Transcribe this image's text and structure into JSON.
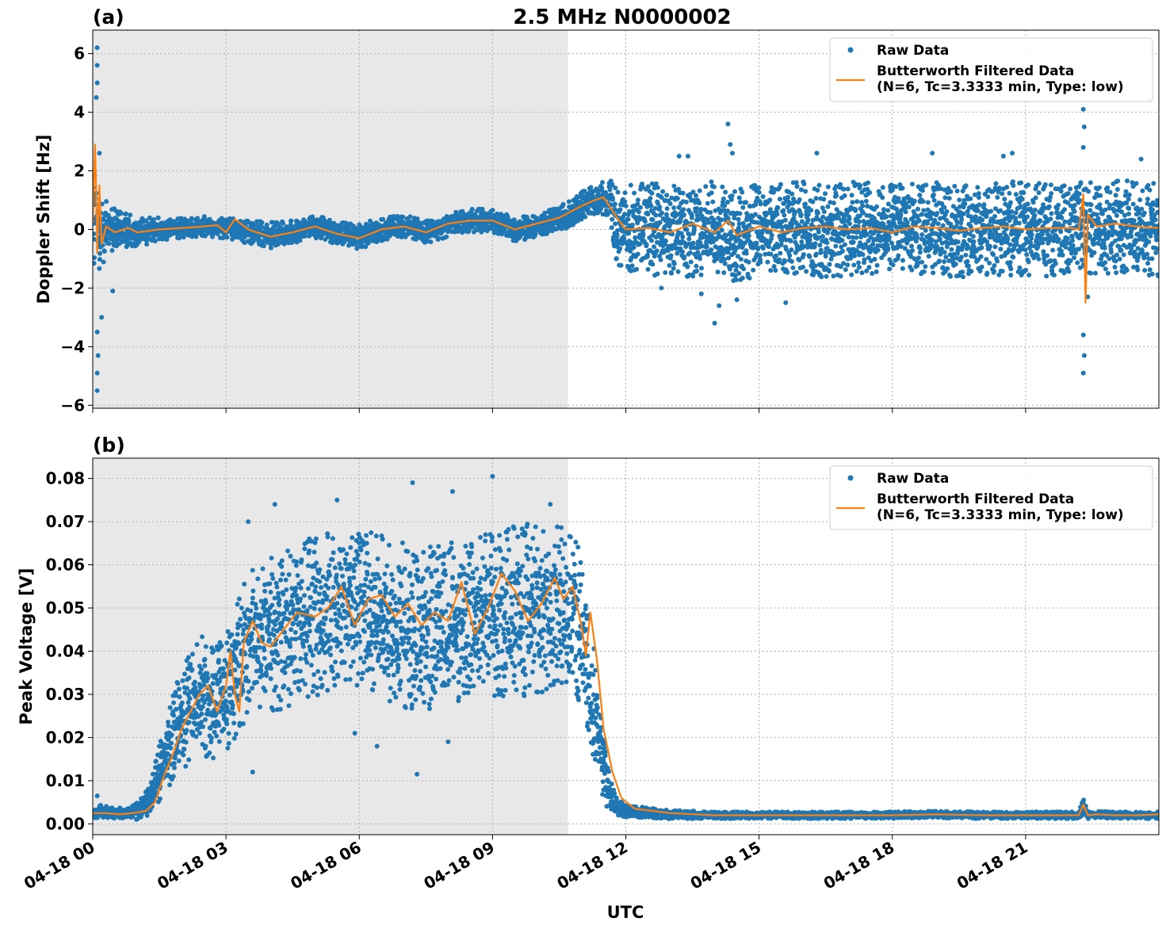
{
  "figure": {
    "title": "2.5 MHz N0000002",
    "xlabel": "UTC",
    "colors": {
      "raw": "#1f77b4",
      "filtered": "#ff7f0e",
      "shade": "#e8e8e8",
      "grid": "#b0b0b0"
    }
  },
  "chart_data": [
    {
      "type": "scatter",
      "panel_label": "(a)",
      "ylabel": "Doppler Shift [Hz]",
      "xlim": [
        0,
        24
      ],
      "ylim": [
        -6.1,
        6.8
      ],
      "yticks": [
        -6,
        -4,
        -2,
        0,
        2,
        4,
        6
      ],
      "ytick_labels": [
        "−6",
        "−4",
        "−2",
        "0",
        "2",
        "4",
        "6"
      ],
      "xticks": [
        0,
        3,
        6,
        9,
        12,
        15,
        18,
        21
      ],
      "xtick_labels": [],
      "grid": true,
      "shaded_x_range": [
        0,
        10.7
      ],
      "legend": {
        "placement": "top-right",
        "entries": [
          {
            "label": "Raw Data",
            "kind": "marker"
          },
          {
            "label": "Butterworth Filtered Data",
            "label2": "(N=6, Tc=3.3333 min, Type: low)",
            "kind": "line"
          }
        ]
      },
      "series": [
        {
          "name": "Raw Data",
          "style": "points",
          "x": [
            0,
            0.05,
            0.1,
            0.2,
            0.35,
            0.5,
            0.7,
            1.0,
            1.5,
            2,
            2.5,
            3,
            3.5,
            4,
            4.5,
            5,
            5.5,
            6,
            6.5,
            7,
            7.5,
            8,
            8.5,
            9,
            9.5,
            10,
            10.5,
            10.7,
            11,
            11.3,
            11.6,
            11.8,
            12,
            12.5,
            13,
            13.5,
            14,
            14.5,
            15,
            15.5,
            16,
            16.5,
            17,
            17.5,
            18,
            18.5,
            19,
            19.5,
            20,
            20.5,
            21,
            21.5,
            22,
            22.3,
            22.6,
            23,
            23.5,
            24
          ],
          "center": [
            0,
            0.2,
            0,
            -0.1,
            0,
            -0.1,
            0,
            -0.1,
            0,
            0.05,
            0.1,
            0.05,
            -0.1,
            -0.2,
            -0.1,
            0.1,
            -0.1,
            -0.25,
            0,
            0.1,
            -0.1,
            0.15,
            0.3,
            0.3,
            0,
            0.1,
            0.4,
            0.5,
            0.8,
            1.0,
            1.1,
            0.2,
            0,
            0,
            -0.1,
            0,
            0.05,
            -0.2,
            0,
            0,
            0.05,
            -0.1,
            0.05,
            0,
            0,
            0.05,
            0,
            -0.05,
            0,
            0.05,
            0,
            0,
            0.05,
            0.1,
            0,
            0.1,
            0.05,
            0
          ],
          "spread": [
            2.2,
            2.2,
            1.4,
            1.2,
            1.0,
            0.8,
            0.6,
            0.5,
            0.4,
            0.35,
            0.35,
            0.35,
            0.4,
            0.45,
            0.4,
            0.4,
            0.4,
            0.45,
            0.4,
            0.4,
            0.4,
            0.4,
            0.4,
            0.4,
            0.4,
            0.4,
            0.4,
            0.45,
            0.5,
            0.5,
            0.6,
            1.4,
            1.5,
            1.6,
            1.6,
            1.6,
            1.6,
            1.6,
            1.6,
            1.6,
            1.6,
            1.6,
            1.6,
            1.6,
            1.6,
            1.6,
            1.6,
            1.6,
            1.6,
            1.6,
            1.6,
            1.6,
            1.6,
            1.6,
            1.6,
            1.6,
            1.6,
            1.6
          ],
          "outliers": [
            [
              0.1,
              6.2
            ],
            [
              0.1,
              5.6
            ],
            [
              0.1,
              5.0
            ],
            [
              0.08,
              4.5
            ],
            [
              0.1,
              -5.5
            ],
            [
              0.1,
              -4.9
            ],
            [
              0.12,
              -4.3
            ],
            [
              0.1,
              -3.5
            ],
            [
              0.2,
              -3.0
            ],
            [
              0.45,
              -2.1
            ],
            [
              0.15,
              2.6
            ],
            [
              14.3,
              3.6
            ],
            [
              14.35,
              2.9
            ],
            [
              14.4,
              2.6
            ],
            [
              12.8,
              -2.0
            ],
            [
              13.7,
              -2.2
            ],
            [
              14.0,
              -3.2
            ],
            [
              14.5,
              -2.4
            ],
            [
              15.6,
              -2.5
            ],
            [
              14.1,
              -2.6
            ],
            [
              13.2,
              2.5
            ],
            [
              13.4,
              2.5
            ],
            [
              16.3,
              2.6
            ],
            [
              18.9,
              2.6
            ],
            [
              20.7,
              2.6
            ],
            [
              22.3,
              4.1
            ],
            [
              22.32,
              3.5
            ],
            [
              22.3,
              2.8
            ],
            [
              22.3,
              -4.9
            ],
            [
              22.32,
              -4.3
            ],
            [
              22.3,
              -3.6
            ],
            [
              22.4,
              -2.3
            ],
            [
              20.5,
              2.5
            ],
            [
              23.6,
              2.4
            ]
          ]
        },
        {
          "name": "Butterworth Filtered Data",
          "style": "line",
          "x": [
            0,
            0.05,
            0.08,
            0.1,
            0.15,
            0.2,
            0.3,
            0.5,
            0.8,
            1,
            1.5,
            2,
            2.5,
            2.8,
            3,
            3.2,
            3.5,
            4,
            4.5,
            5,
            5.5,
            6,
            6.5,
            7,
            7.5,
            8,
            8.5,
            9,
            9.5,
            10,
            10.5,
            11,
            11.3,
            11.5,
            11.8,
            12,
            12.5,
            13,
            13.5,
            14,
            14.3,
            14.5,
            15,
            15.5,
            16,
            16.5,
            17,
            17.5,
            18,
            18.5,
            19,
            19.5,
            20,
            20.5,
            21,
            21.5,
            22,
            22.2,
            22.3,
            22.35,
            22.4,
            22.6,
            23,
            23.5,
            24
          ],
          "y": [
            0.2,
            2.9,
            1.2,
            -0.8,
            1.5,
            -0.5,
            0.1,
            -0.1,
            0.05,
            -0.1,
            0,
            0.05,
            0.1,
            0.15,
            -0.1,
            0.35,
            0,
            -0.25,
            -0.1,
            0.1,
            -0.15,
            -0.3,
            0,
            0.1,
            -0.1,
            0.2,
            0.3,
            0.3,
            0,
            0.2,
            0.4,
            0.8,
            1.0,
            1.1,
            0.4,
            0,
            0.05,
            -0.1,
            0.2,
            -0.1,
            0.3,
            -0.2,
            0.1,
            -0.1,
            0.05,
            0.1,
            0,
            0.05,
            -0.1,
            0.1,
            0.05,
            -0.05,
            0.05,
            0.1,
            0,
            0.05,
            0.05,
            0,
            1.2,
            -2.5,
            0.5,
            0.1,
            0.2,
            0.1,
            0.05
          ]
        }
      ]
    },
    {
      "type": "scatter",
      "panel_label": "(b)",
      "ylabel": "Peak Voltage [V]",
      "xlim": [
        0,
        24
      ],
      "ylim": [
        -0.0025,
        0.0847
      ],
      "yticks": [
        0.0,
        0.01,
        0.02,
        0.03,
        0.04,
        0.05,
        0.06,
        0.07,
        0.08
      ],
      "ytick_labels": [
        "0.00",
        "0.01",
        "0.02",
        "0.03",
        "0.04",
        "0.05",
        "0.06",
        "0.07",
        "0.08"
      ],
      "xticks": [
        0,
        3,
        6,
        9,
        12,
        15,
        18,
        21
      ],
      "xtick_labels": [
        "04-18 00",
        "04-18 03",
        "04-18 06",
        "04-18 09",
        "04-18 12",
        "04-18 15",
        "04-18 18",
        "04-18 21"
      ],
      "grid": true,
      "shaded_x_range": [
        0,
        10.7
      ],
      "legend": {
        "placement": "top-right",
        "entries": [
          {
            "label": "Raw Data",
            "kind": "marker"
          },
          {
            "label": "Butterworth Filtered Data",
            "label2": "(N=6, Tc=3.3333 min, Type: low)",
            "kind": "line"
          }
        ]
      },
      "series": [
        {
          "name": "Raw Data",
          "style": "points",
          "x": [
            0,
            0.2,
            0.5,
            0.8,
            1.0,
            1.3,
            1.6,
            1.9,
            2.2,
            2.5,
            2.8,
            3.0,
            3.3,
            3.6,
            4.0,
            4.5,
            5.0,
            5.5,
            6.0,
            6.5,
            7.0,
            7.5,
            8.0,
            8.5,
            9.0,
            9.5,
            10.0,
            10.5,
            10.9,
            11.2,
            11.4,
            11.6,
            11.8,
            12.0,
            12.5,
            13,
            14,
            15,
            16,
            17,
            18,
            19,
            20,
            21,
            22,
            22.2,
            22.3,
            22.4,
            22.6,
            23,
            23.5,
            24
          ],
          "center": [
            0.0025,
            0.003,
            0.0025,
            0.0025,
            0.003,
            0.006,
            0.015,
            0.022,
            0.027,
            0.03,
            0.028,
            0.03,
            0.038,
            0.042,
            0.044,
            0.046,
            0.048,
            0.05,
            0.049,
            0.048,
            0.046,
            0.045,
            0.046,
            0.047,
            0.048,
            0.049,
            0.05,
            0.05,
            0.048,
            0.035,
            0.018,
            0.008,
            0.004,
            0.003,
            0.0025,
            0.0022,
            0.002,
            0.002,
            0.002,
            0.002,
            0.002,
            0.0022,
            0.002,
            0.002,
            0.002,
            0.002,
            0.004,
            0.002,
            0.0022,
            0.002,
            0.002,
            0.002
          ],
          "spread": [
            0.0012,
            0.0015,
            0.0012,
            0.0012,
            0.002,
            0.004,
            0.008,
            0.011,
            0.013,
            0.014,
            0.014,
            0.015,
            0.016,
            0.017,
            0.018,
            0.019,
            0.019,
            0.019,
            0.019,
            0.019,
            0.019,
            0.019,
            0.019,
            0.019,
            0.02,
            0.02,
            0.02,
            0.019,
            0.018,
            0.016,
            0.01,
            0.005,
            0.002,
            0.0015,
            0.0012,
            0.001,
            0.0008,
            0.0008,
            0.0008,
            0.0008,
            0.0008,
            0.0008,
            0.0008,
            0.0008,
            0.0008,
            0.0008,
            0.0018,
            0.0008,
            0.0008,
            0.0008,
            0.0008,
            0.0008
          ],
          "outliers": [
            [
              0.1,
              0.0065
            ],
            [
              3.5,
              0.07
            ],
            [
              4.1,
              0.074
            ],
            [
              5.5,
              0.075
            ],
            [
              7.2,
              0.079
            ],
            [
              9.0,
              0.0805
            ],
            [
              8.1,
              0.077
            ],
            [
              3.6,
              0.012
            ],
            [
              7.3,
              0.0115
            ],
            [
              5.9,
              0.021
            ],
            [
              8.0,
              0.019
            ],
            [
              6.4,
              0.018
            ],
            [
              10.3,
              0.074
            ]
          ]
        },
        {
          "name": "Butterworth Filtered Data",
          "style": "line",
          "x": [
            0,
            0.3,
            0.6,
            0.9,
            1.2,
            1.4,
            1.6,
            1.8,
            2.0,
            2.2,
            2.4,
            2.6,
            2.8,
            3.0,
            3.1,
            3.2,
            3.3,
            3.4,
            3.6,
            3.8,
            4.0,
            4.3,
            4.6,
            5.0,
            5.3,
            5.6,
            5.9,
            6.2,
            6.5,
            6.8,
            7.1,
            7.4,
            7.7,
            8.0,
            8.3,
            8.6,
            8.9,
            9.2,
            9.5,
            9.8,
            10.1,
            10.4,
            10.6,
            10.8,
            11.0,
            11.1,
            11.2,
            11.35,
            11.5,
            11.7,
            11.9,
            12.2,
            12.6,
            13,
            14,
            15,
            16,
            17,
            18,
            19,
            20,
            21,
            22,
            22.2,
            22.3,
            22.4,
            22.6,
            23,
            23.5,
            24
          ],
          "y": [
            0.0025,
            0.0025,
            0.0022,
            0.0025,
            0.003,
            0.005,
            0.011,
            0.016,
            0.022,
            0.026,
            0.03,
            0.032,
            0.026,
            0.032,
            0.04,
            0.03,
            0.026,
            0.042,
            0.047,
            0.042,
            0.041,
            0.045,
            0.049,
            0.048,
            0.05,
            0.055,
            0.046,
            0.052,
            0.053,
            0.048,
            0.051,
            0.046,
            0.049,
            0.047,
            0.056,
            0.044,
            0.05,
            0.058,
            0.054,
            0.047,
            0.051,
            0.057,
            0.052,
            0.055,
            0.046,
            0.039,
            0.049,
            0.038,
            0.022,
            0.012,
            0.006,
            0.0035,
            0.003,
            0.0025,
            0.002,
            0.002,
            0.002,
            0.002,
            0.002,
            0.0022,
            0.002,
            0.002,
            0.002,
            0.002,
            0.0045,
            0.002,
            0.0022,
            0.002,
            0.002,
            0.0022
          ]
        }
      ]
    }
  ]
}
